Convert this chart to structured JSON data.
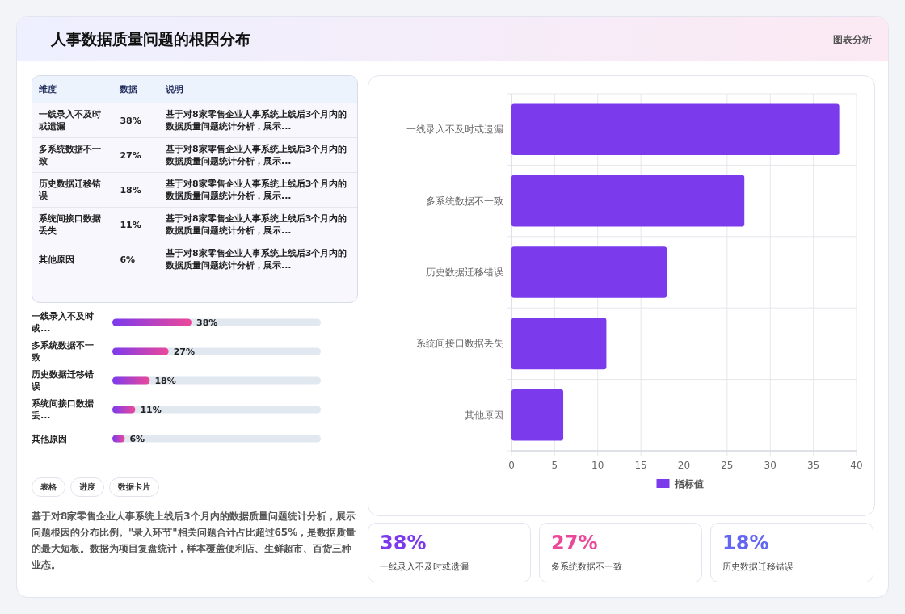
{
  "chart_data": [
    {
      "type": "other",
      "title": "人事数据质量问题的根因分布",
      "annotations": [
        "图表分析"
      ]
    },
    {
      "type": "other",
      "annotations": [
        "维度",
        "数据",
        "说明",
        "一线录入不及时或遗漏",
        "38%",
        "基于对8家零售企业人事系统上线后3个月内的数据质量问题统计分析，展示...",
        "多系统数据不一致",
        "27%",
        "基于对8家零售企业人事系统上线后3个月内的数据质量问题统计分析，展示...",
        "历史数据迁移错误",
        "18%",
        "基于对8家零售企业人事系统上线后3个月内的数据质量问题统计分析，展示...",
        "系统间接口数据丢失",
        "11%",
        "基于对8家零售企业人事系统上线后3个月内的数据质量问题统计分析，展示...",
        "其他原因",
        "6%",
        "基于对8家零售企业人事系统上线后3个月内的数据质量问题统计分析，展示..."
      ]
    },
    {
      "type": "bar",
      "orientation": "horizontal",
      "categories": [
        "一线录入不及时或...",
        "多系统数据不一致",
        "历史数据迁移错误",
        "系统间接口数据丢...",
        "其他原因"
      ],
      "values": [
        38,
        27,
        18,
        11,
        6
      ],
      "value_labels": [
        "38%",
        "27%",
        "18%",
        "11%",
        "6%"
      ]
    },
    {
      "type": "other",
      "annotations": [
        "表格",
        "进度",
        "数据卡片",
        "基于对8家零售企业人事系统上线后3个月内的数据质量问题统计分析，展示问题根因的分布比例。\"录入环节\"相关问题合计占比超过65%，是数据质量的最大短板。数据为项目复盘统计，样本覆盖便利店、生鲜超市、百货三种业态。"
      ]
    },
    {
      "type": "bar",
      "orientation": "horizontal",
      "categories": [
        "一线录入不及时或遗漏",
        "多系统数据不一致",
        "历史数据迁移错误",
        "系统间接口数据丢失",
        "其他原因"
      ],
      "series": [
        {
          "name": "指标值",
          "color": "#7c3aed",
          "values": [
            38,
            27,
            18,
            11,
            6
          ]
        }
      ],
      "xlim": [
        0,
        40
      ],
      "xticks": [
        0,
        5,
        10,
        15,
        20,
        25,
        30,
        35,
        40
      ],
      "grid": true,
      "legend": "bottom"
    },
    {
      "type": "other",
      "annotations": [
        "38%",
        "一线录入不及时或遗漏",
        "27%",
        "多系统数据不一致",
        "18%",
        "历史数据迁移错误"
      ]
    }
  ]
}
